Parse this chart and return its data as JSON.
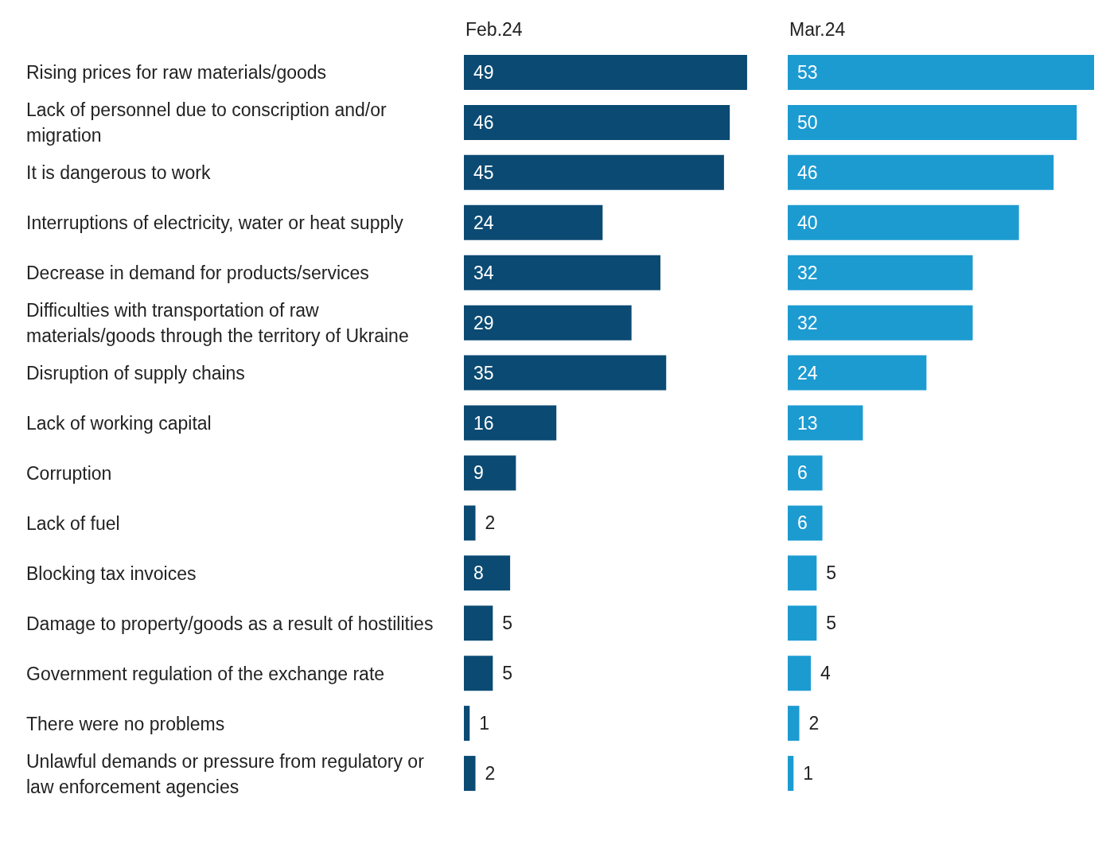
{
  "chart_data": [
    {
      "type": "bar",
      "orientation": "horizontal",
      "title": "Feb.24",
      "categories": [
        "Rising prices for raw materials/goods",
        "Lack of personnel due to conscription and/or migration",
        "It is dangerous to work",
        "Interruptions of electricity, water or heat supply",
        "Decrease in demand for products/services",
        "Difficulties with transportation of raw materials/goods through the territory of Ukraine",
        "Disruption of supply chains",
        "Lack of working capital",
        "Corruption",
        "Lack of fuel",
        "Blocking tax invoices",
        "Damage to property/goods as a result of hostilities",
        "Government regulation of the exchange rate",
        "There were no problems",
        "Unlawful demands or pressure from regulatory or law enforcement agencies"
      ],
      "values": [
        49,
        46,
        45,
        24,
        34,
        29,
        35,
        16,
        9,
        2,
        8,
        5,
        5,
        1,
        2
      ],
      "color": "#0b4a73",
      "data_labels": true,
      "tick_labels": "y"
    },
    {
      "type": "bar",
      "orientation": "horizontal",
      "title": "Mar.24",
      "categories": [
        null,
        null,
        null,
        null,
        null,
        null,
        null,
        null,
        null,
        null,
        null,
        null,
        null,
        null,
        null
      ],
      "values": [
        53,
        50,
        46,
        40,
        32,
        32,
        24,
        13,
        6,
        6,
        5,
        5,
        4,
        2,
        1
      ],
      "color": "#1c9bd1",
      "data_labels": true,
      "tick_labels": false
    }
  ]
}
